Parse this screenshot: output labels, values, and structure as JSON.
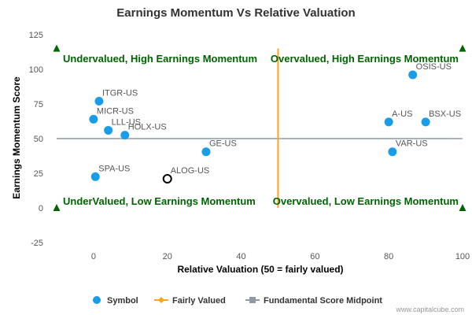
{
  "chart_data": {
    "type": "scatter",
    "title": "Earnings Momentum Vs Relative Valuation",
    "xlabel": "Relative Valuation (50 = fairly valued)",
    "ylabel": "Earnings Momentum Score",
    "xlim": [
      -10,
      100
    ],
    "ylim": [
      -25,
      125
    ],
    "x_ticks": [
      0,
      20,
      40,
      60,
      80,
      100
    ],
    "y_ticks": [
      -25,
      0,
      25,
      50,
      75,
      100,
      125
    ],
    "grid": false,
    "legend_position": "bottom",
    "points": [
      {
        "label": "OSIS-US",
        "x": 86.5,
        "y": 96
      },
      {
        "label": "ITGR-US",
        "x": 1.5,
        "y": 77
      },
      {
        "label": "MICR-US",
        "x": 0,
        "y": 64
      },
      {
        "label": "LLL-US",
        "x": 4,
        "y": 56
      },
      {
        "label": "HOLX-US",
        "x": 8.5,
        "y": 52.5
      },
      {
        "label": "A-US",
        "x": 80,
        "y": 62
      },
      {
        "label": "BSX-US",
        "x": 90,
        "y": 62
      },
      {
        "label": "VAR-US",
        "x": 81,
        "y": 40.5
      },
      {
        "label": "GE-US",
        "x": 30.5,
        "y": 40.5
      },
      {
        "label": "SPA-US",
        "x": 0.5,
        "y": 22.5
      },
      {
        "label": "ALOG-US",
        "x": 20,
        "y": 21,
        "highlight": true
      }
    ],
    "reference_lines": {
      "fairly_valued_x": 50,
      "score_midpoint_y": 50
    },
    "quadrant_labels": {
      "top_left": "Undervalued, High Earnings Momentum",
      "top_right": "Overvalued, High Earnings Momentum",
      "bottom_left": "UnderValued, Low Earnings Momentum",
      "bottom_right": "Overvalued, Low Earnings Momentum"
    },
    "legend": [
      "Symbol",
      "Fairly Valued",
      "Fundamental Score Midpoint"
    ],
    "colors": {
      "symbol": "#1a9de8",
      "fairly_valued": "#f5a623",
      "midpoint": "#8f9aa5",
      "quadrant_text": "#006400",
      "marker": "#006400"
    }
  },
  "credit": "www.capitalcube.com"
}
